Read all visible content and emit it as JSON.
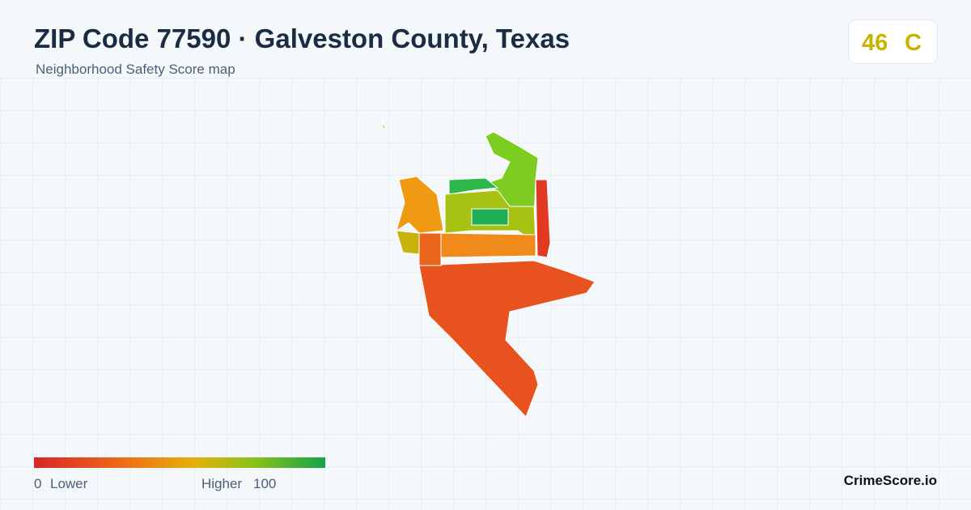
{
  "header": {
    "title": "ZIP Code 77590 · Galveston County, Texas",
    "subtitle": "Neighborhood Safety Score map"
  },
  "score": {
    "value": 46,
    "grade": "C"
  },
  "legend": {
    "min": 0,
    "min_label": "Lower",
    "max_label": "Higher",
    "max": 100
  },
  "brand": "CrimeScore.io"
}
